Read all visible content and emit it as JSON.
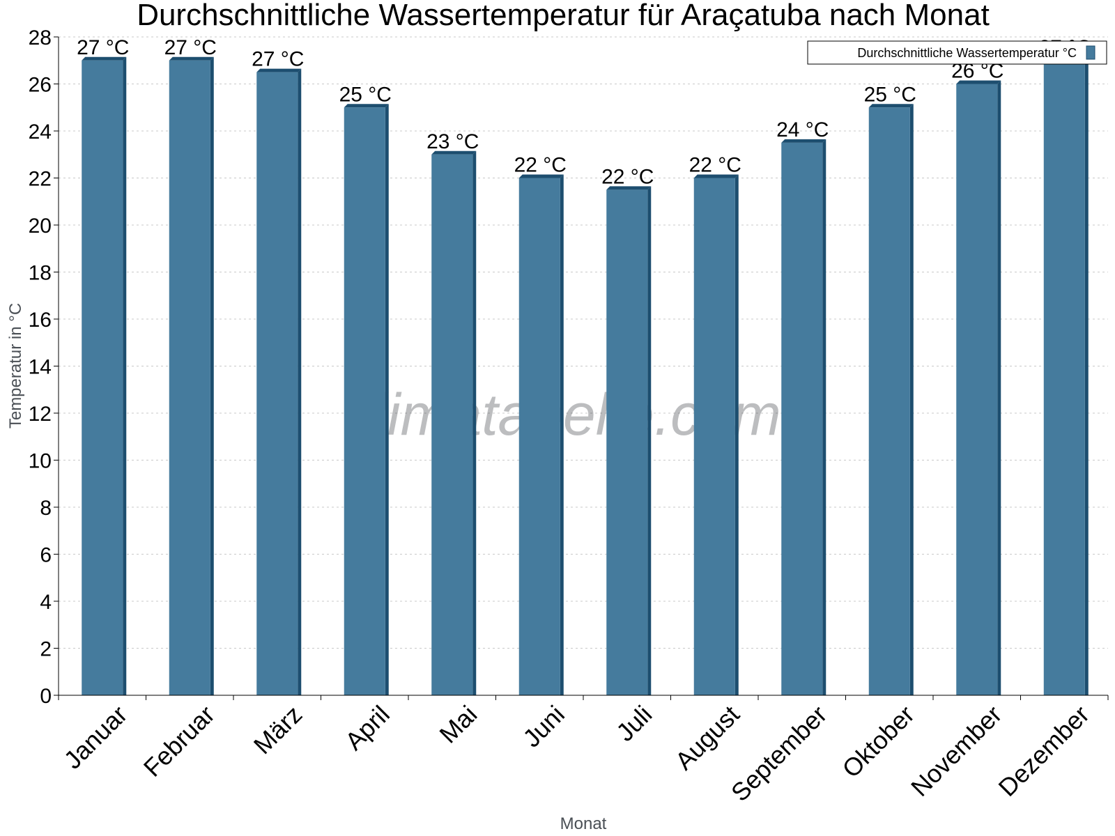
{
  "chart_data": {
    "type": "bar",
    "title": "Durchschnittliche Wassertemperatur für Araçatuba nach Monat",
    "xlabel": "Monat",
    "ylabel": "Temperatur in °C",
    "categories": [
      "Januar",
      "Februar",
      "März",
      "April",
      "Mai",
      "Juni",
      "Juli",
      "August",
      "September",
      "Oktober",
      "November",
      "Dezember"
    ],
    "series": [
      {
        "name": "Durchschnittliche Wassertemperatur °C",
        "values": [
          27,
          27,
          26.5,
          25,
          23,
          22,
          21.5,
          22,
          23.5,
          25,
          26,
          27
        ],
        "labels": [
          "27 °C",
          "27 °C",
          "27 °C",
          "25 °C",
          "23 °C",
          "22 °C",
          "22 °C",
          "22 °C",
          "24 °C",
          "25 °C",
          "26 °C",
          "27 °C"
        ]
      }
    ],
    "ylim": [
      0,
      28
    ],
    "yticks": [
      0,
      2,
      4,
      6,
      8,
      10,
      12,
      14,
      16,
      18,
      20,
      22,
      24,
      26,
      28
    ],
    "grid": true,
    "legend_position": "top-right",
    "colors": {
      "bar": "#457b9d",
      "bar_edge": "#1d4e6f",
      "grid": "#c8c8c8",
      "axis": "#000000"
    }
  },
  "watermark": "klimatabelle.com"
}
